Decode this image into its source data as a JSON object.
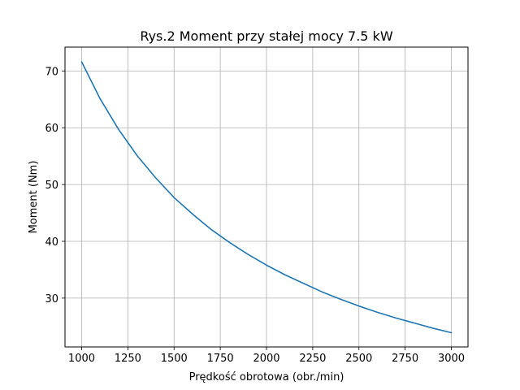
{
  "chart_data": {
    "type": "line",
    "title": "Rys.2 Moment przy stałej mocy 7.5 kW",
    "xlabel": "Prędkość obrotowa (obr./min)",
    "ylabel": "Moment (Nm)",
    "xlim": [
      910,
      3090
    ],
    "ylim": [
      21.4,
      74.2
    ],
    "xticks": [
      1000,
      1250,
      1500,
      1750,
      2000,
      2250,
      2500,
      2750,
      3000
    ],
    "yticks": [
      30,
      40,
      50,
      60,
      70
    ],
    "grid": true,
    "series": [
      {
        "color": "#1f77b4",
        "x": [
          1000,
          1100,
          1200,
          1300,
          1400,
          1500,
          1600,
          1700,
          1800,
          1900,
          2000,
          2100,
          2200,
          2300,
          2400,
          2500,
          2600,
          2700,
          2800,
          2900,
          3000
        ],
        "y": [
          71.6,
          65.1,
          59.7,
          55.1,
          51.2,
          47.7,
          44.8,
          42.1,
          39.8,
          37.7,
          35.8,
          34.1,
          32.6,
          31.1,
          29.8,
          28.6,
          27.5,
          26.5,
          25.6,
          24.7,
          23.9
        ]
      }
    ]
  }
}
